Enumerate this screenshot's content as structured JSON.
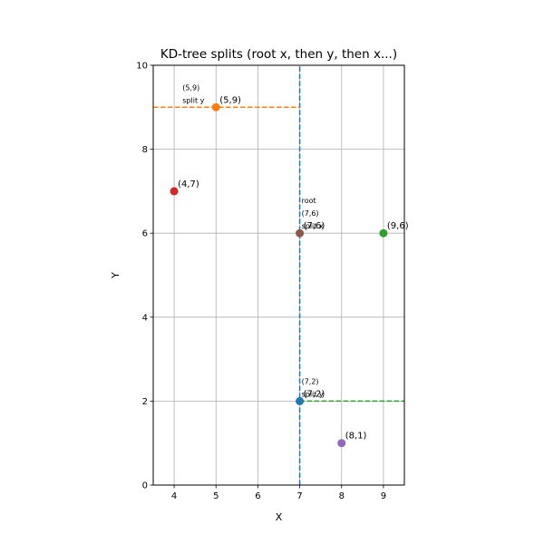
{
  "chart_data": {
    "type": "scatter",
    "title": "KD-tree splits (root x, then y, then x...)",
    "xlabel": "X",
    "ylabel": "Y",
    "xlim": [
      3.5,
      9.5
    ],
    "ylim": [
      0,
      10
    ],
    "xticks": [
      4,
      5,
      6,
      7,
      8,
      9
    ],
    "yticks": [
      0,
      2,
      4,
      6,
      8,
      10
    ],
    "grid": true,
    "points": [
      {
        "x": 7,
        "y": 6,
        "label": "(7,6)",
        "color": "#8c564b"
      },
      {
        "x": 7,
        "y": 2,
        "label": "(7,2)",
        "color": "#1f77b4"
      },
      {
        "x": 5,
        "y": 9,
        "label": "(5,9)",
        "color": "#ff7f0e"
      },
      {
        "x": 9,
        "y": 6,
        "label": "(9,6)",
        "color": "#2ca02c"
      },
      {
        "x": 4,
        "y": 7,
        "label": "(4,7)",
        "color": "#d62728"
      },
      {
        "x": 8,
        "y": 1,
        "label": "(8,1)",
        "color": "#9467bd"
      }
    ],
    "split_lines": [
      {
        "orientation": "vertical",
        "at": 7,
        "from": 0,
        "to": 10,
        "color": "#1f77b4"
      },
      {
        "orientation": "horizontal",
        "at": 9,
        "from": 3.5,
        "to": 7,
        "color": "#ff7f0e"
      },
      {
        "orientation": "horizontal",
        "at": 2,
        "from": 7,
        "to": 9.5,
        "color": "#2ca02c"
      }
    ],
    "annotations": [
      {
        "lines": [
          "root",
          "(7,6)",
          "split x"
        ],
        "x": 7,
        "y": 6
      },
      {
        "lines": [
          "(5,9)",
          "split y"
        ],
        "x": 5,
        "y": 9,
        "side": "left"
      },
      {
        "lines": [
          "(7,2)",
          "split y"
        ],
        "x": 7,
        "y": 2
      }
    ]
  }
}
